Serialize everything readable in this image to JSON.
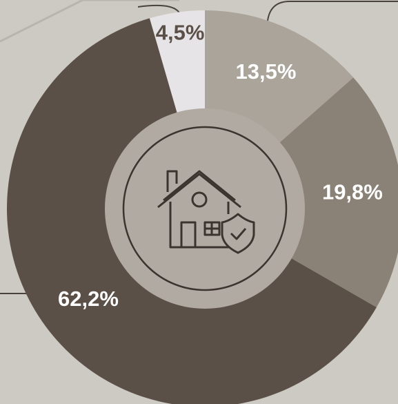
{
  "chart_data": {
    "type": "donut",
    "categories": [
      null,
      null,
      null,
      null
    ],
    "values": [
      13.5,
      19.8,
      62.2,
      4.5
    ],
    "value_labels": [
      "13,5%",
      "19,8%",
      "62,2%",
      "4,5%"
    ],
    "colors": [
      "#aba49b",
      "#8b8277",
      "#5b5047",
      "#e6e4e7"
    ]
  }
}
